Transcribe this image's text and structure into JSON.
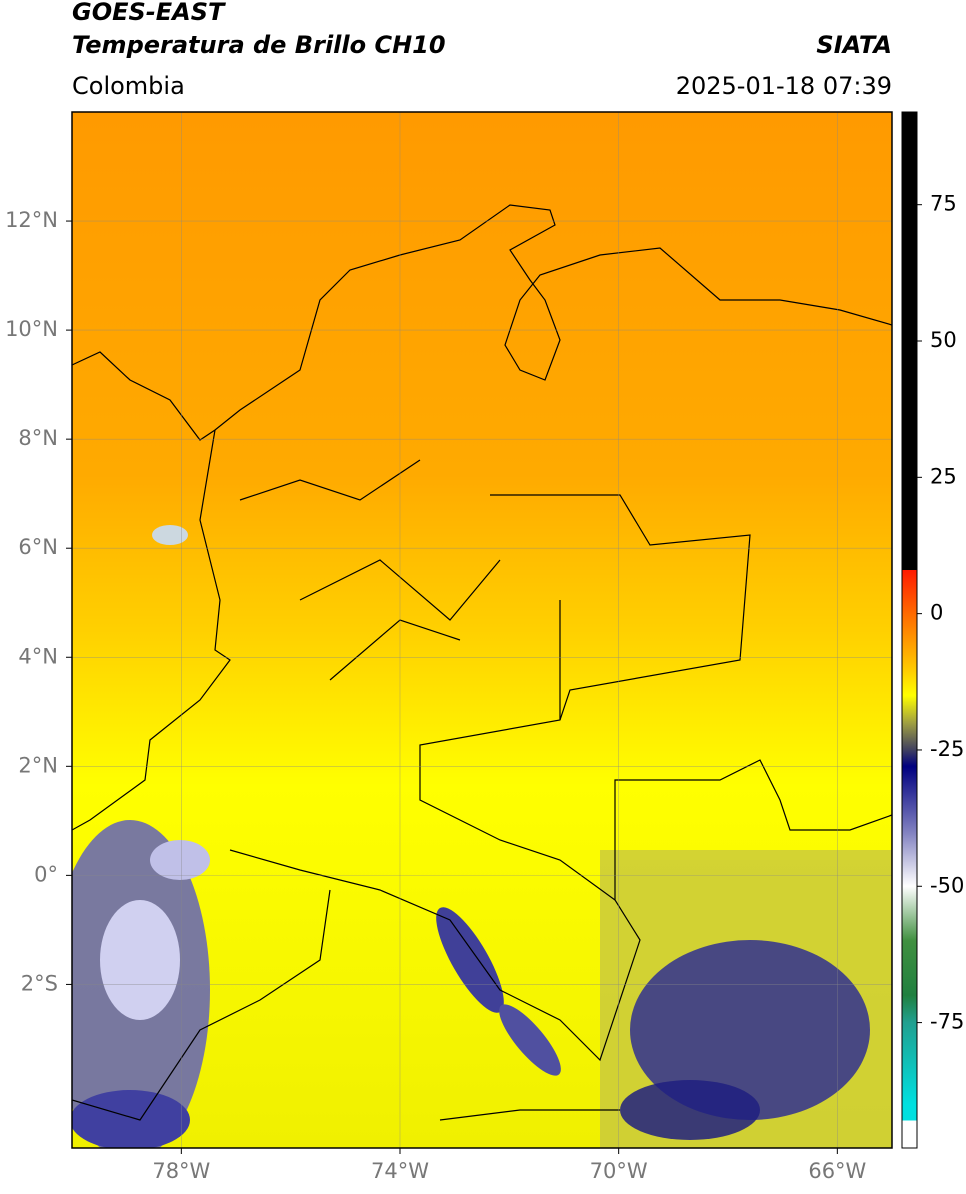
{
  "header": {
    "title": "GOES-EAST",
    "subtitle": "Temperatura de Brillo CH10",
    "source": "SIATA",
    "region": "Colombia",
    "datetime": "2025-01-18 07:39"
  },
  "chart_data": {
    "type": "map",
    "xlim": [
      -80,
      -65
    ],
    "ylim": [
      -5,
      14
    ],
    "xticks": [
      {
        "value": -78,
        "label": "78°W"
      },
      {
        "value": -74,
        "label": "74°W"
      },
      {
        "value": -70,
        "label": "70°W"
      },
      {
        "value": -66,
        "label": "66°W"
      }
    ],
    "yticks": [
      {
        "value": 12,
        "label": "12°N"
      },
      {
        "value": 10,
        "label": "10°N"
      },
      {
        "value": 8,
        "label": "8°N"
      },
      {
        "value": 6,
        "label": "6°N"
      },
      {
        "value": 4,
        "label": "4°N"
      },
      {
        "value": 2,
        "label": "2°N"
      },
      {
        "value": 0,
        "label": "0°"
      },
      {
        "value": -2,
        "label": "2°S"
      }
    ],
    "grid": true,
    "colorbar": {
      "lim": [
        -98,
        92
      ],
      "ticks": [
        75,
        50,
        25,
        0,
        -25,
        -50,
        -75
      ],
      "stops": [
        {
          "value": 92,
          "color": "#000000"
        },
        {
          "value": 8,
          "color": "#000000"
        },
        {
          "value": 8,
          "color": "#ff1a00"
        },
        {
          "value": 0,
          "color": "#ff6a00"
        },
        {
          "value": -10,
          "color": "#ffc800"
        },
        {
          "value": -15,
          "color": "#ffff00"
        },
        {
          "value": -20,
          "color": "#a0a040"
        },
        {
          "value": -25,
          "color": "#404060"
        },
        {
          "value": -28,
          "color": "#000080"
        },
        {
          "value": -40,
          "color": "#8080c0"
        },
        {
          "value": -50,
          "color": "#ffffff"
        },
        {
          "value": -60,
          "color": "#409040"
        },
        {
          "value": -70,
          "color": "#208040"
        },
        {
          "value": -75,
          "color": "#20a090"
        },
        {
          "value": -90,
          "color": "#00e0e0"
        },
        {
          "value": -93,
          "color": "#00e0e0"
        },
        {
          "value": -93,
          "color": "#ffffff"
        },
        {
          "value": -98,
          "color": "#ffffff"
        }
      ]
    }
  }
}
